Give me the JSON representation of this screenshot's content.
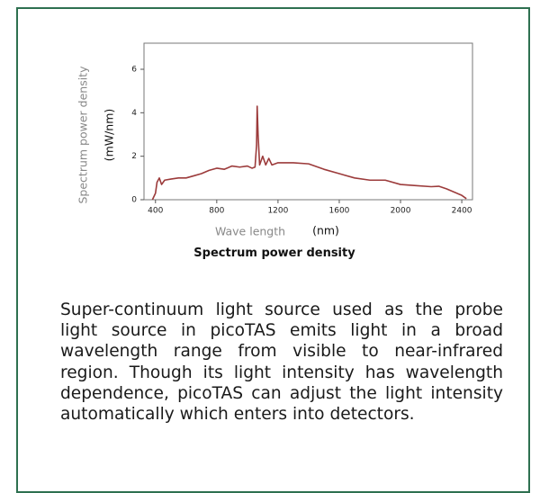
{
  "chart_data": {
    "type": "line",
    "y_label": "Spectrum power density",
    "y_unit": "(mW/nm)",
    "x_label": "Wave length",
    "x_unit": "(nm)",
    "x": [
      380,
      400,
      410,
      425,
      440,
      460,
      500,
      550,
      600,
      650,
      700,
      750,
      800,
      850,
      900,
      950,
      1000,
      1030,
      1050,
      1060,
      1064,
      1070,
      1080,
      1100,
      1120,
      1140,
      1160,
      1200,
      1300,
      1400,
      1500,
      1600,
      1700,
      1800,
      1900,
      2000,
      2100,
      2200,
      2250,
      2300,
      2400,
      2430
    ],
    "series": [
      {
        "name": "Spectrum power density",
        "color": "#9c3b3b",
        "values": [
          0,
          0.3,
          0.8,
          1.0,
          0.7,
          0.9,
          0.95,
          1.0,
          1.0,
          1.1,
          1.2,
          1.35,
          1.45,
          1.4,
          1.55,
          1.5,
          1.55,
          1.45,
          1.5,
          2.5,
          4.3,
          3.0,
          1.6,
          2.0,
          1.6,
          1.9,
          1.6,
          1.7,
          1.7,
          1.65,
          1.4,
          1.2,
          1.0,
          0.9,
          0.9,
          0.7,
          0.65,
          0.6,
          0.62,
          0.5,
          0.2,
          0.05
        ]
      }
    ],
    "xlim": [
      325,
      2470
    ],
    "xticks": [
      400,
      800,
      1200,
      1600,
      2000,
      2400
    ],
    "ylim": [
      0,
      7.2
    ],
    "yticks": [
      0,
      2,
      4,
      6
    ]
  },
  "caption": "Spectrum power density",
  "paragraph": "Super-continuum light source used as the probe light source in picoTAS emits light in a broad wavelength range from visible to near-infrared region. Though its light intensity has wavelength dependence, picoTAS can adjust the light intensity automatically which enters into detectors."
}
